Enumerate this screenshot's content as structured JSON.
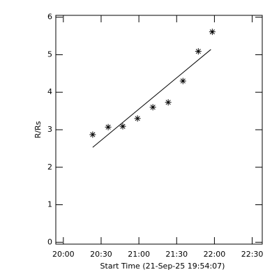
{
  "chart_data": {
    "type": "scatter",
    "xlabel": "Start Time (21-Sep-25 19:54:07)",
    "ylabel": "R/Rs",
    "x": [
      23.3,
      35.6,
      47.2,
      58.9,
      71.1,
      83.3,
      95.0,
      107.2,
      118.3
    ],
    "values": [
      2.87,
      3.07,
      3.09,
      3.3,
      3.6,
      3.73,
      4.3,
      5.09,
      5.61
    ],
    "color": "#000000",
    "fit": {
      "x": [
        23.3,
        117.2
      ],
      "values": [
        2.53,
        5.14
      ]
    },
    "xlim": [
      -6,
      158
    ],
    "ylim": [
      -0.05,
      6.05
    ],
    "xticks": [
      {
        "value": 0,
        "label": "20:00"
      },
      {
        "value": 30,
        "label": "20:30"
      },
      {
        "value": 60,
        "label": "21:00"
      },
      {
        "value": 90,
        "label": "21:30"
      },
      {
        "value": 120,
        "label": "22:00"
      },
      {
        "value": 150,
        "label": "22:30"
      }
    ],
    "yticks": [
      0,
      1,
      2,
      3,
      4,
      5,
      6
    ]
  }
}
